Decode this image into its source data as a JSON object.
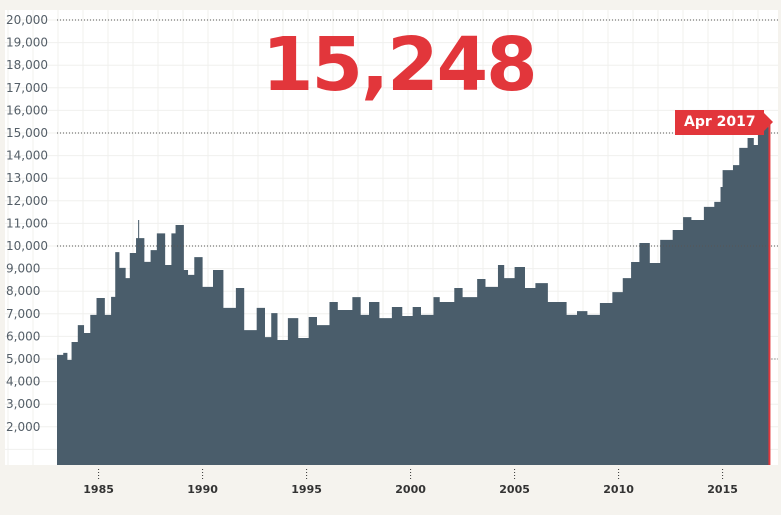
{
  "headline_value": "15,248",
  "latest_label": "Apr 2017",
  "colors": {
    "area": "#4a5d6b",
    "accent": "#e2363b",
    "background": "#f5f3ee"
  },
  "chart_data": {
    "type": "area",
    "step": true,
    "ylim": [
      0,
      20000
    ],
    "y_ticks": [
      2000,
      3000,
      4000,
      5000,
      6000,
      7000,
      8000,
      9000,
      10000,
      11000,
      12000,
      13000,
      14000,
      15000,
      16000,
      17000,
      18000,
      19000,
      20000
    ],
    "y_tick_labels": [
      "2,000",
      "3,000",
      "4,000",
      "5,000",
      "6,000",
      "7,000",
      "8,000",
      "9,000",
      "10,000",
      "11,000",
      "12,000",
      "13,000",
      "14,000",
      "15,000",
      "16,000",
      "17,000",
      "18,000",
      "19,000",
      "20,000"
    ],
    "reference_lines": [
      5000,
      10000,
      15000,
      20000
    ],
    "x_ticks": [
      1985,
      1990,
      1995,
      2000,
      2005,
      2010,
      2015
    ],
    "x_tick_labels": [
      "1985",
      "1990",
      "1995",
      "2000",
      "2005",
      "2010",
      "2015"
    ],
    "xlim": [
      1983.0,
      2017.3
    ],
    "grid": true,
    "x": [
      1983.0,
      1983.3,
      1983.5,
      1983.7,
      1984.0,
      1984.3,
      1984.6,
      1984.9,
      1985.3,
      1985.6,
      1985.8,
      1986.0,
      1986.3,
      1986.5,
      1986.8,
      1986.9,
      1986.95,
      1987.2,
      1987.5,
      1987.8,
      1988.2,
      1988.5,
      1988.7,
      1989.1,
      1989.3,
      1989.6,
      1990.0,
      1990.5,
      1991.0,
      1991.6,
      1992.0,
      1992.6,
      1993.0,
      1993.3,
      1993.6,
      1994.1,
      1994.6,
      1995.1,
      1995.5,
      1996.1,
      1996.5,
      1997.2,
      1997.6,
      1998.0,
      1998.5,
      1999.1,
      1999.6,
      2000.1,
      2000.5,
      2001.1,
      2001.4,
      2002.1,
      2002.5,
      2003.2,
      2003.6,
      2004.2,
      2004.5,
      2005.0,
      2005.5,
      2006.0,
      2006.6,
      2007.5,
      2008.0,
      2008.5,
      2009.1,
      2009.7,
      2010.2,
      2010.6,
      2011.0,
      2011.5,
      2012.0,
      2012.6,
      2013.1,
      2013.5,
      2014.1,
      2014.6,
      2014.9,
      2015.0,
      2015.5,
      2015.8,
      2016.2,
      2016.5,
      2016.7,
      2016.9,
      2017.2
    ],
    "y": [
      5180,
      5270,
      4960,
      5750,
      6500,
      6150,
      6950,
      7700,
      6950,
      7750,
      9730,
      9030,
      8580,
      9690,
      10350,
      11150,
      10350,
      9300,
      9820,
      10560,
      9160,
      10560,
      10930,
      8940,
      8720,
      9510,
      8190,
      8940,
      7260,
      8140,
      6280,
      7260,
      5970,
      7030,
      5840,
      6810,
      5930,
      6860,
      6500,
      7520,
      7170,
      7740,
      6950,
      7520,
      6810,
      7300,
      6900,
      7300,
      6950,
      7740,
      7520,
      8140,
      7740,
      8540,
      8190,
      9160,
      8580,
      9070,
      8140,
      8360,
      7520,
      6950,
      7120,
      6950,
      7480,
      7960,
      8580,
      9290,
      10130,
      9250,
      10270,
      10710,
      11280,
      11150,
      11730,
      11950,
      12610,
      13360,
      13580,
      14340,
      14780,
      14470,
      15220,
      15350,
      15248
    ]
  }
}
